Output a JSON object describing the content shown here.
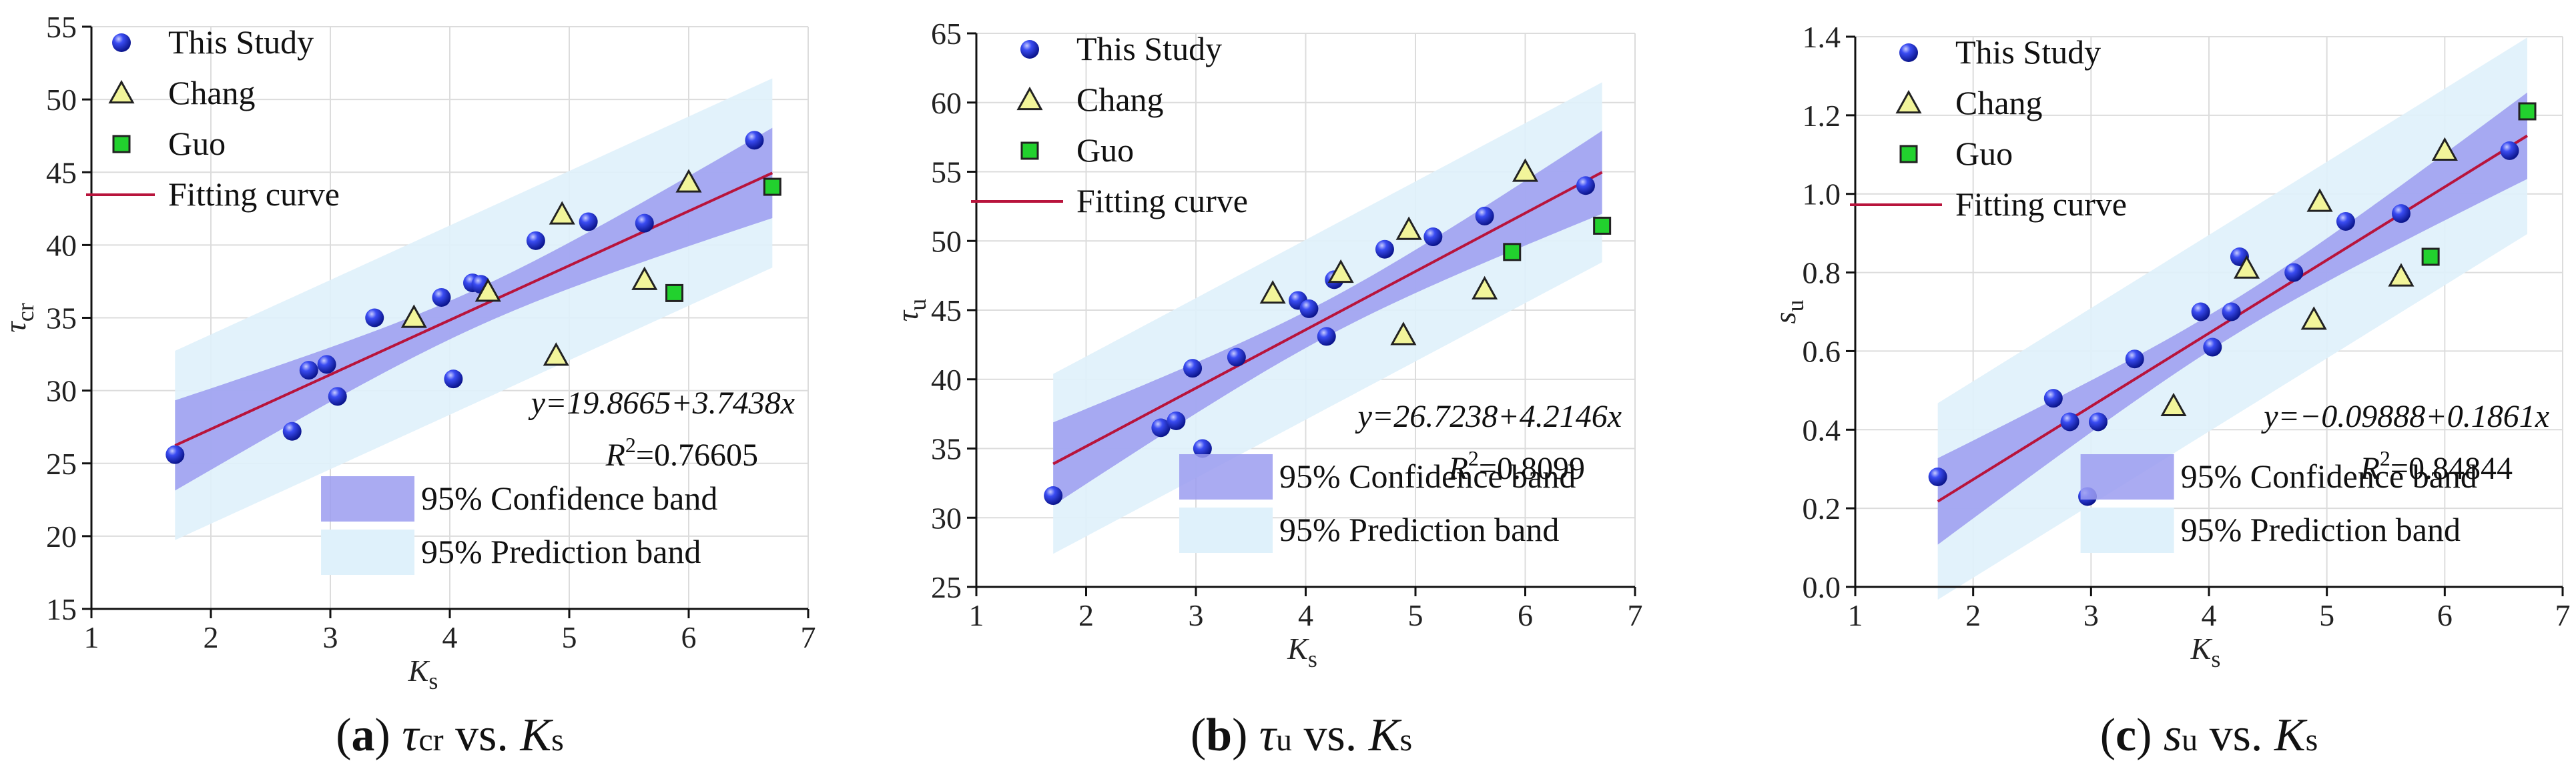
{
  "chart_data": [
    {
      "type": "scatter",
      "panel": "a",
      "caption": {
        "label": "(a)",
        "text": "τcr vs. Ks"
      },
      "xlabel": "Ks",
      "ylabel": "τcr",
      "xlim": [
        1,
        7
      ],
      "ylim": [
        15,
        55
      ],
      "xticks": [
        1,
        2,
        3,
        4,
        5,
        6,
        7
      ],
      "yticks": [
        15,
        20,
        25,
        30,
        35,
        40,
        45,
        50,
        55
      ],
      "series": [
        {
          "name": "This Study",
          "marker": "circle",
          "x": [
            1.7,
            2.68,
            2.82,
            2.97,
            3.06,
            3.37,
            3.93,
            4.03,
            4.19,
            4.26,
            4.72,
            5.16,
            5.63,
            6.55
          ],
          "y": [
            25.6,
            27.2,
            31.4,
            31.8,
            29.6,
            35.0,
            36.4,
            30.8,
            37.4,
            37.3,
            40.3,
            41.6,
            41.5,
            47.2
          ]
        },
        {
          "name": "Chang",
          "marker": "triangle",
          "x": [
            3.7,
            4.32,
            4.89,
            4.94,
            5.63,
            6.0
          ],
          "y": [
            35.0,
            36.8,
            32.4,
            42.1,
            37.6,
            44.3
          ]
        },
        {
          "name": "Guo",
          "marker": "square",
          "x": [
            5.88,
            6.7
          ],
          "y": [
            36.7,
            44.0
          ]
        }
      ],
      "fit": {
        "name": "Fitting curve",
        "intercept": 19.8665,
        "slope": 3.7438,
        "x_range": [
          1.7,
          6.7
        ]
      },
      "bands": {
        "confidence_label": "95% Confidence band",
        "prediction_label": "95% Prediction band",
        "conf_half_width_at_ends": 3.1,
        "conf_half_width_center": 1.3,
        "pred_half_width": 6.5
      },
      "equation": "y=19.8665+3.7438x",
      "r2_label": "R",
      "r2_sup": "2",
      "r2_value": "=0.76605"
    },
    {
      "type": "scatter",
      "panel": "b",
      "caption": {
        "label": "(b)",
        "text": "τu vs. Ks"
      },
      "xlabel": "Ks",
      "ylabel": "τu",
      "xlim": [
        1,
        7
      ],
      "ylim": [
        25,
        65
      ],
      "xticks": [
        1,
        2,
        3,
        4,
        5,
        6,
        7
      ],
      "yticks": [
        25,
        30,
        35,
        40,
        45,
        50,
        55,
        60,
        65
      ],
      "series": [
        {
          "name": "This Study",
          "marker": "circle",
          "x": [
            1.7,
            2.68,
            2.82,
            2.97,
            3.06,
            3.37,
            3.93,
            4.03,
            4.19,
            4.26,
            4.72,
            5.16,
            5.63,
            6.55
          ],
          "y": [
            31.6,
            36.5,
            37.0,
            40.8,
            35.0,
            41.6,
            45.7,
            45.1,
            43.1,
            47.2,
            49.4,
            50.3,
            51.8,
            54.0
          ]
        },
        {
          "name": "Chang",
          "marker": "triangle",
          "x": [
            3.7,
            4.32,
            4.89,
            4.94,
            5.63,
            6.0
          ],
          "y": [
            46.2,
            47.7,
            43.2,
            50.8,
            46.5,
            55.0
          ]
        },
        {
          "name": "Guo",
          "marker": "square",
          "x": [
            5.88,
            6.7
          ],
          "y": [
            49.2,
            51.1
          ]
        }
      ],
      "fit": {
        "name": "Fitting curve",
        "intercept": 26.7238,
        "slope": 4.2146,
        "x_range": [
          1.7,
          6.7
        ]
      },
      "bands": {
        "confidence_label": "95% Confidence band",
        "prediction_label": "95% Prediction band",
        "conf_half_width_at_ends": 3.0,
        "conf_half_width_center": 1.3,
        "pred_half_width": 6.5
      },
      "equation": "y=26.7238+4.2146x",
      "r2_label": "R",
      "r2_sup": "2",
      "r2_value": "=0.8099"
    },
    {
      "type": "scatter",
      "panel": "c",
      "caption": {
        "label": "(c)",
        "text": "su vs. Ks"
      },
      "xlabel": "Ks",
      "ylabel": "su",
      "xlim": [
        1,
        7
      ],
      "ylim": [
        0.0,
        1.4
      ],
      "xticks": [
        1,
        2,
        3,
        4,
        5,
        6,
        7
      ],
      "yticks": [
        "0.0",
        "0.2",
        "0.4",
        "0.6",
        "0.8",
        "1.0",
        "1.2",
        "1.4"
      ],
      "series": [
        {
          "name": "This Study",
          "marker": "circle",
          "x": [
            1.7,
            2.68,
            2.82,
            2.97,
            3.06,
            3.37,
            3.93,
            4.03,
            4.19,
            4.26,
            4.72,
            5.16,
            5.63,
            6.55
          ],
          "y": [
            0.28,
            0.48,
            0.42,
            0.23,
            0.42,
            0.58,
            0.7,
            0.61,
            0.7,
            0.84,
            0.8,
            0.93,
            0.95,
            1.11
          ]
        },
        {
          "name": "Chang",
          "marker": "triangle",
          "x": [
            3.7,
            4.32,
            4.89,
            4.94,
            5.63,
            6.0
          ],
          "y": [
            0.46,
            0.81,
            0.68,
            0.98,
            0.79,
            1.11
          ]
        },
        {
          "name": "Guo",
          "marker": "square",
          "x": [
            5.88,
            6.7
          ],
          "y": [
            0.84,
            1.21
          ]
        }
      ],
      "fit": {
        "name": "Fitting curve",
        "intercept": -0.09888,
        "slope": 0.1861,
        "x_range": [
          1.7,
          6.7
        ]
      },
      "bands": {
        "confidence_label": "95% Confidence band",
        "prediction_label": "95% Prediction band",
        "conf_half_width_at_ends": 0.11,
        "conf_half_width_center": 0.045,
        "pred_half_width": 0.25
      },
      "equation": "y=−0.09888+0.1861x",
      "r2_label": "R",
      "r2_sup": "2",
      "r2_value": "=0.84844"
    }
  ],
  "colors": {
    "this_study": "#1d2fe0",
    "chang": "#f2f59a",
    "guo": "#22d12e",
    "fit": "#b8143c",
    "confidence": "#9b9cf0",
    "prediction": "#dff1fb"
  }
}
